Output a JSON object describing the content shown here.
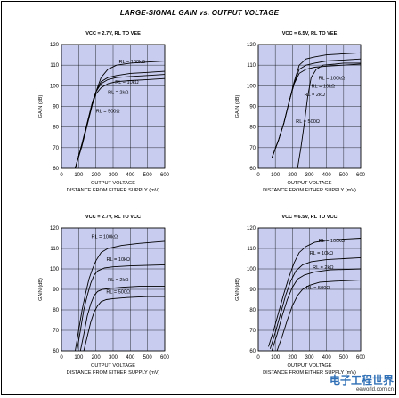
{
  "figure_title": "LARGE-SIGNAL GAIN vs. OUTPUT VOLTAGE",
  "colors": {
    "plot_bg": "#c8cdf0",
    "line": "#000000",
    "grid": "#000000"
  },
  "watermark": {
    "main": "电子工程世界",
    "sub": "eeworld.com.cn"
  },
  "chart_data": [
    {
      "type": "line",
      "title": "VCC = 2.7V, RL TO VEE",
      "xlabel": "OUTPUT VOLTAGE DISTANCE FROM EITHER SUPPLY (mV)",
      "ylabel": "GAIN (dB)",
      "xlim": [
        0,
        600
      ],
      "ylim": [
        60,
        120
      ],
      "xticks": [
        "0",
        "100",
        "200",
        "300",
        "400",
        "500",
        "600"
      ],
      "yticks": [
        "60",
        "70",
        "80",
        "90",
        "100",
        "110",
        "120"
      ],
      "grid": true,
      "series": [
        {
          "name": "RL = 100kΩ",
          "x": [
            80,
            120,
            150,
            180,
            200,
            230,
            270,
            320,
            400,
            500,
            600
          ],
          "y": [
            60,
            72,
            82,
            92,
            97,
            104,
            108,
            110,
            111,
            111.5,
            112
          ]
        },
        {
          "name": "RL = 10kΩ",
          "x": [
            80,
            120,
            150,
            180,
            200,
            230,
            270,
            320,
            400,
            500,
            600
          ],
          "y": [
            60,
            72,
            82,
            92,
            97,
            102,
            104,
            105,
            106,
            106.5,
            107
          ]
        },
        {
          "name": "RL = 2kΩ",
          "x": [
            80,
            120,
            150,
            180,
            200,
            230,
            270,
            320,
            400,
            500,
            600
          ],
          "y": [
            60,
            72,
            82,
            92,
            97,
            101,
            103,
            104,
            104.5,
            105,
            105.5
          ]
        },
        {
          "name": "RL = 500Ω",
          "x": [
            80,
            120,
            150,
            180,
            200,
            230,
            270,
            320,
            400,
            500,
            600
          ],
          "y": [
            60,
            71,
            81,
            91,
            96,
            99,
            101,
            102,
            102.5,
            103,
            103.5
          ]
        }
      ],
      "labels": [
        {
          "text": "RL = 100kΩ",
          "x": 410,
          "y": 111
        },
        {
          "text": "RL = 10kΩ",
          "x": 380,
          "y": 101
        },
        {
          "text": "RL = 2kΩ",
          "x": 330,
          "y": 96
        },
        {
          "text": "RL = 500Ω",
          "x": 270,
          "y": 87
        }
      ]
    },
    {
      "type": "line",
      "title": "VCC = 6.5V, RL TO VEE",
      "xlabel": "OUTPUT VOLTAGE DISTANCE FROM EITHER SUPPLY (mV)",
      "ylabel": "GAIN (dB)",
      "xlim": [
        0,
        600
      ],
      "ylim": [
        60,
        120
      ],
      "xticks": [
        "0",
        "100",
        "200",
        "300",
        "400",
        "500",
        "600"
      ],
      "yticks": [
        "60",
        "70",
        "80",
        "90",
        "100",
        "110",
        "120"
      ],
      "grid": true,
      "series": [
        {
          "name": "RL = 100kΩ",
          "x": [
            80,
            120,
            150,
            180,
            210,
            240,
            280,
            330,
            400,
            500,
            600
          ],
          "y": [
            65,
            74,
            82,
            92,
            102,
            110,
            113,
            114,
            115,
            115.5,
            116
          ]
        },
        {
          "name": "RL = 10kΩ",
          "x": [
            80,
            120,
            150,
            180,
            210,
            240,
            280,
            330,
            400,
            500,
            600
          ],
          "y": [
            65,
            74,
            82,
            92,
            101,
            108,
            110,
            111,
            112,
            112.5,
            113
          ]
        },
        {
          "name": "RL = 2kΩ",
          "x": [
            80,
            120,
            150,
            180,
            210,
            240,
            280,
            330,
            400,
            500,
            600
          ],
          "y": [
            65,
            74,
            82,
            92,
            101,
            106,
            108,
            109,
            109.5,
            110,
            110.5
          ]
        },
        {
          "name": "RL = 500Ω",
          "x": [
            230,
            250,
            270,
            290,
            310,
            340,
            380,
            450,
            500,
            600
          ],
          "y": [
            60,
            70,
            82,
            95,
            104,
            108,
            110,
            110.5,
            111,
            111
          ]
        }
      ],
      "labels": [
        {
          "text": "RL = 100kΩ",
          "x": 430,
          "y": 103
        },
        {
          "text": "RL = 10kΩ",
          "x": 380,
          "y": 99
        },
        {
          "text": "RL = 2kΩ",
          "x": 330,
          "y": 95
        },
        {
          "text": "RL = 500Ω",
          "x": 290,
          "y": 82
        }
      ]
    },
    {
      "type": "line",
      "title": "VCC = 2.7V, RL TO VCC",
      "xlabel": "OUTPUT VOLTAGE DISTANCE FROM EITHER SUPPLY (mV)",
      "ylabel": "GAIN (dB)",
      "xlim": [
        0,
        600
      ],
      "ylim": [
        60,
        120
      ],
      "xticks": [
        "0",
        "100",
        "200",
        "300",
        "400",
        "500",
        "600"
      ],
      "yticks": [
        "60",
        "70",
        "80",
        "90",
        "100",
        "110",
        "120"
      ],
      "grid": true,
      "series": [
        {
          "name": "RL = 100kΩ",
          "x": [
            80,
            100,
            120,
            140,
            160,
            180,
            200,
            230,
            270,
            350,
            450,
            600
          ],
          "y": [
            60,
            70,
            80,
            88,
            95,
            100,
            104,
            108,
            110,
            111.5,
            112.5,
            113.5
          ]
        },
        {
          "name": "RL = 10kΩ",
          "x": [
            90,
            110,
            130,
            150,
            170,
            190,
            210,
            250,
            300,
            400,
            600
          ],
          "y": [
            60,
            70,
            80,
            87,
            93,
            97,
            99,
            100.5,
            101,
            101.5,
            102
          ]
        },
        {
          "name": "RL = 2kΩ",
          "x": [
            110,
            130,
            150,
            170,
            190,
            210,
            240,
            280,
            350,
            450,
            600
          ],
          "y": [
            60,
            68,
            77,
            83,
            87,
            89,
            90,
            90.5,
            91,
            91.5,
            91.5
          ]
        },
        {
          "name": "RL = 500Ω",
          "x": [
            130,
            150,
            170,
            190,
            210,
            230,
            260,
            300,
            380,
            500,
            600
          ],
          "y": [
            60,
            67,
            74,
            79,
            82,
            84,
            85,
            85.5,
            86,
            86.5,
            86.5
          ]
        }
      ],
      "labels": [
        {
          "text": "RL = 100kΩ",
          "x": 250,
          "y": 115
        },
        {
          "text": "RL = 10kΩ",
          "x": 330,
          "y": 104
        },
        {
          "text": "RL = 2kΩ",
          "x": 330,
          "y": 94
        },
        {
          "text": "RL = 500Ω",
          "x": 330,
          "y": 88
        }
      ]
    },
    {
      "type": "line",
      "title": "VCC = 6.5V, RL TO VCC",
      "xlabel": "OUTPUT VOLTAGE DISTANCE FROM EITHER SUPPLY (mV)",
      "ylabel": "GAIN (dB)",
      "xlim": [
        0,
        600
      ],
      "ylim": [
        60,
        120
      ],
      "xticks": [
        "0",
        "100",
        "200",
        "300",
        "400",
        "500",
        "600"
      ],
      "yticks": [
        "60",
        "70",
        "80",
        "90",
        "100",
        "110",
        "120"
      ],
      "grid": true,
      "series": [
        {
          "name": "RL = 100kΩ",
          "x": [
            60,
            90,
            120,
            150,
            180,
            210,
            240,
            280,
            330,
            400,
            500,
            600
          ],
          "y": [
            62,
            70,
            79,
            88,
            96,
            103,
            108,
            111,
            113,
            114,
            114.5,
            115
          ]
        },
        {
          "name": "RL = 10kΩ",
          "x": [
            70,
            100,
            130,
            160,
            190,
            220,
            260,
            310,
            400,
            500,
            600
          ],
          "y": [
            61,
            69,
            78,
            87,
            94,
            99,
            102,
            103.5,
            104.5,
            105,
            105.5
          ]
        },
        {
          "name": "RL = 2kΩ",
          "x": [
            80,
            110,
            140,
            170,
            200,
            230,
            270,
            330,
            420,
            600
          ],
          "y": [
            60,
            68,
            77,
            85,
            91,
            95,
            97,
            98.5,
            99.5,
            100
          ]
        },
        {
          "name": "RL = 500Ω",
          "x": [
            110,
            140,
            170,
            200,
            230,
            260,
            300,
            360,
            450,
            600
          ],
          "y": [
            60,
            67,
            75,
            82,
            87,
            90,
            92,
            93.5,
            94,
            94.5
          ]
        }
      ],
      "labels": [
        {
          "text": "RL = 100kΩ",
          "x": 430,
          "y": 113
        },
        {
          "text": "RL = 10kΩ",
          "x": 370,
          "y": 107
        },
        {
          "text": "RL = 2kΩ",
          "x": 380,
          "y": 100
        },
        {
          "text": "RL = 500Ω",
          "x": 350,
          "y": 90
        }
      ]
    }
  ]
}
